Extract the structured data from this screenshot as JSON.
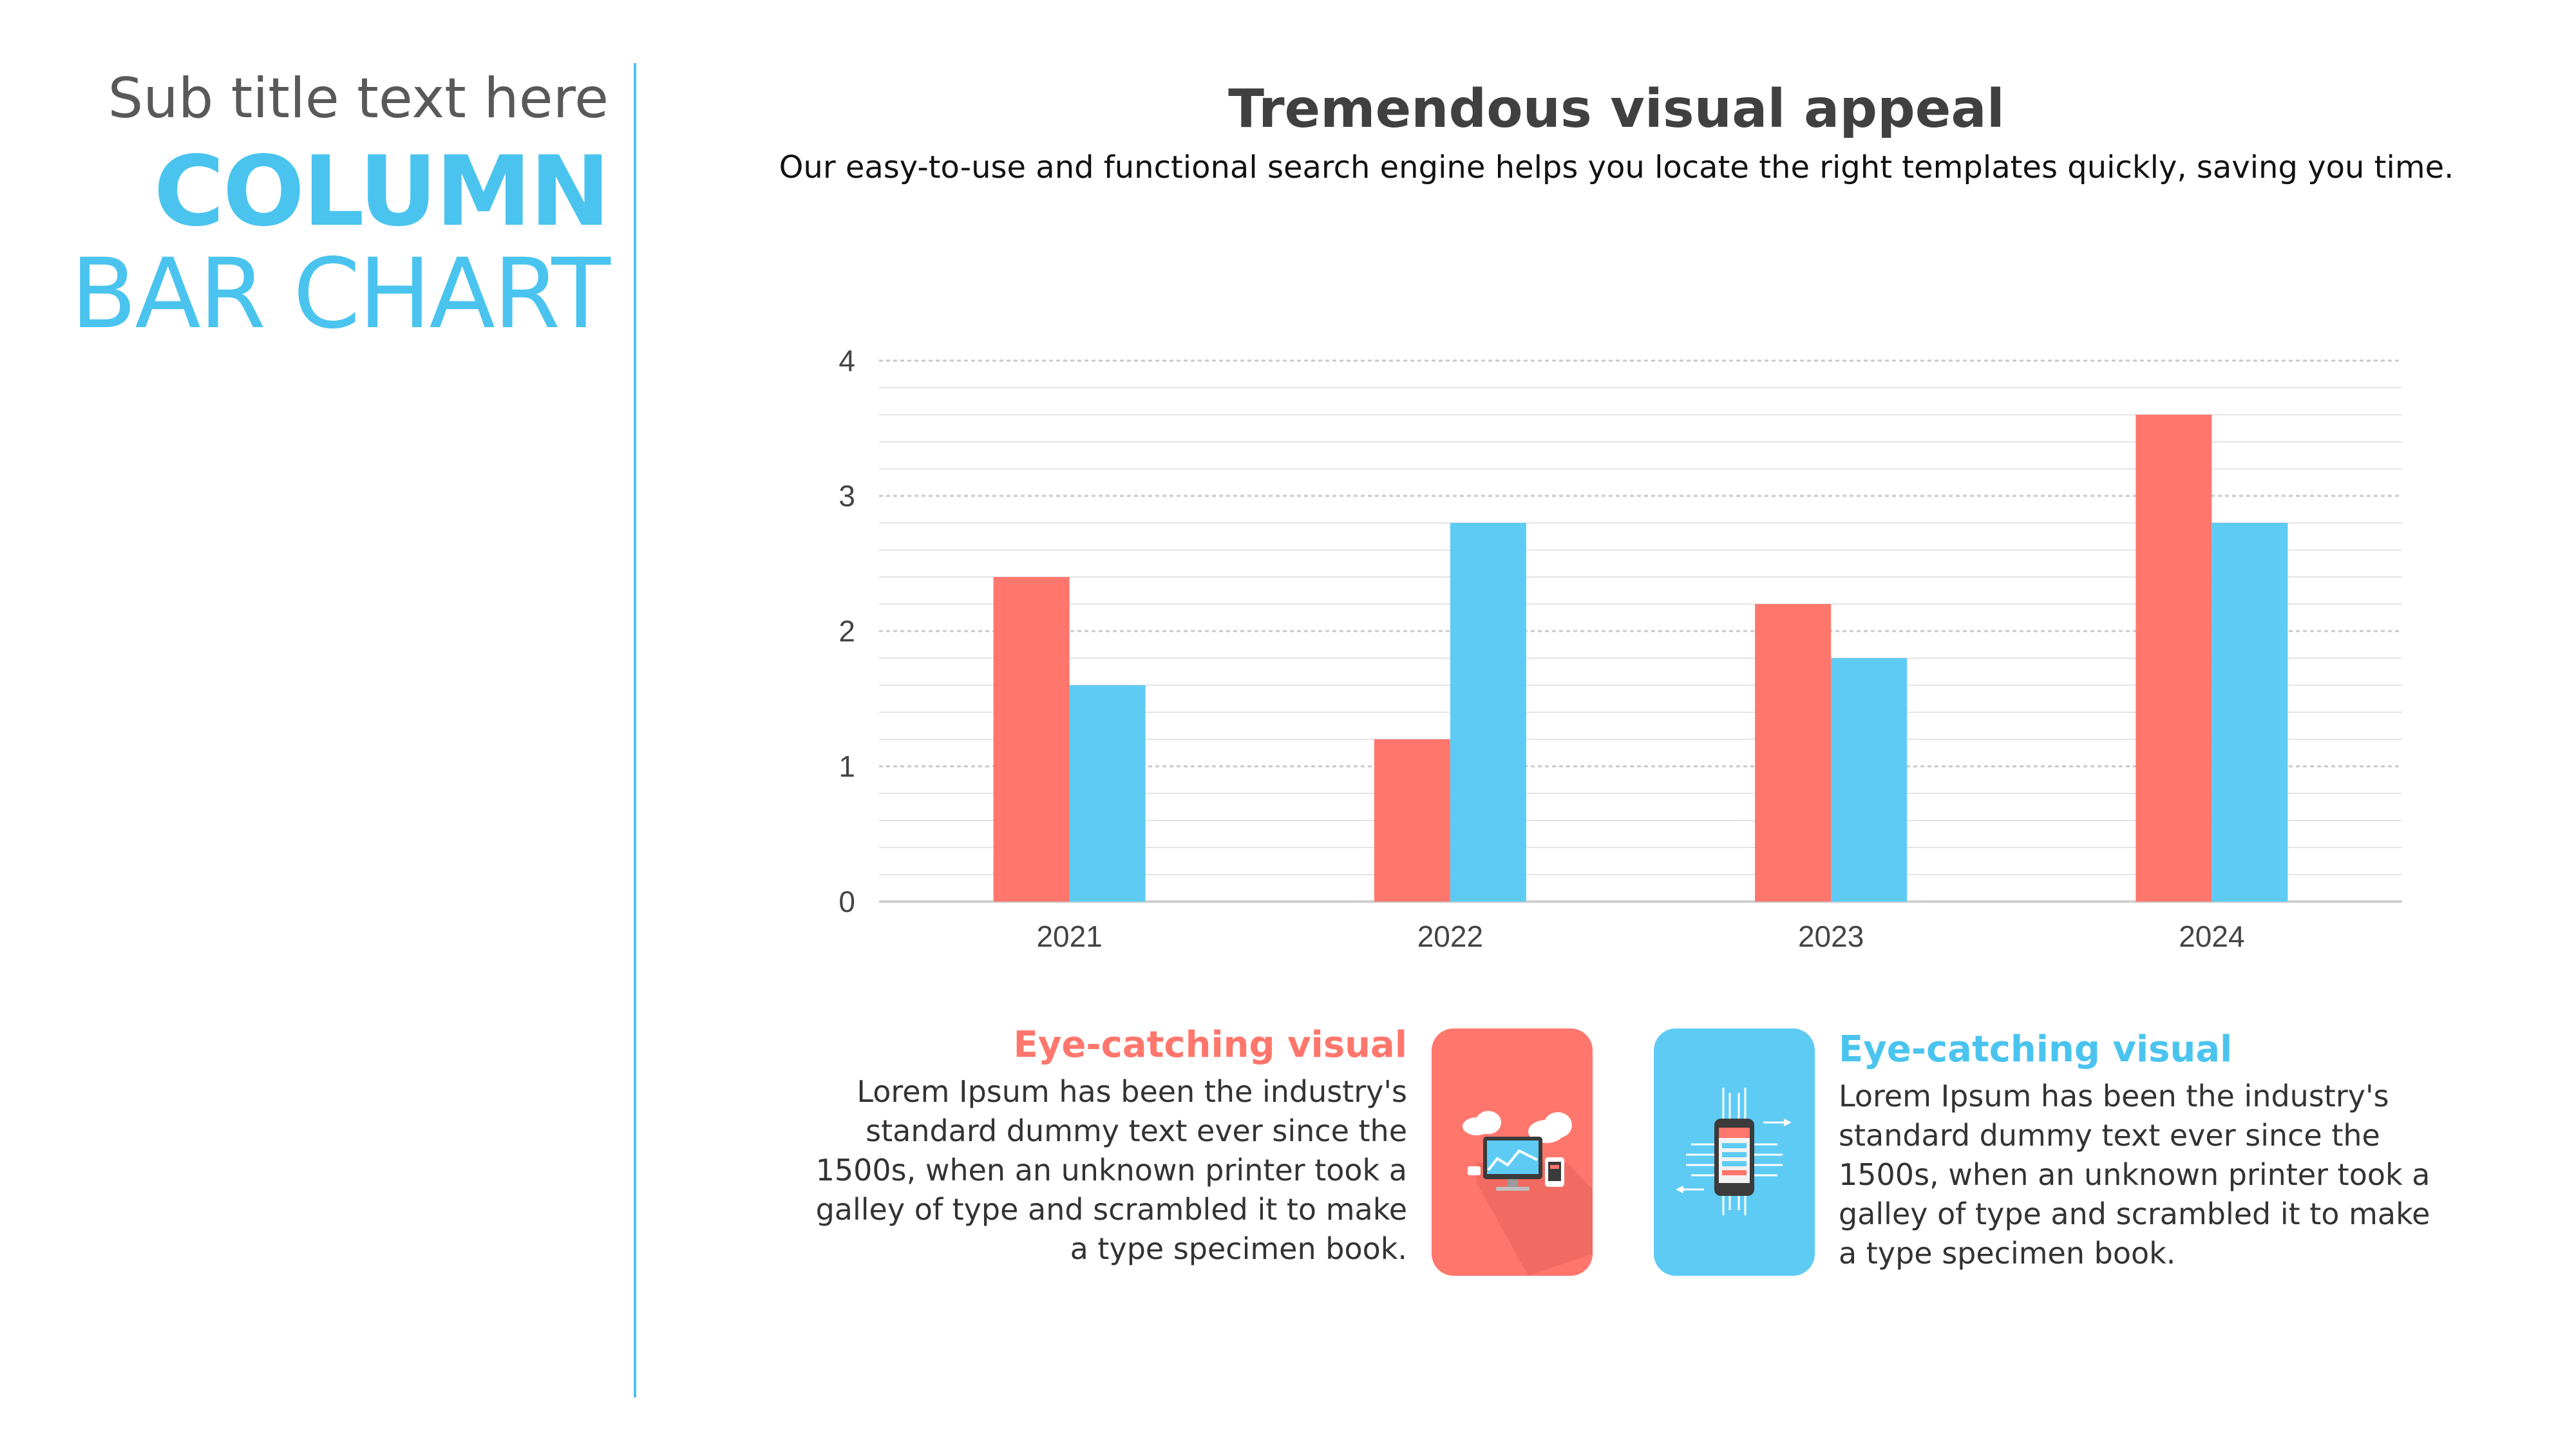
{
  "sidebar": {
    "subtitle": "Sub title text here",
    "title_bold": "COLUMN",
    "title_light": "BAR CHART"
  },
  "header": {
    "heading": "Tremendous visual appeal",
    "lead": "Our easy-to-use and functional search engine helps you locate the right templates quickly, saving you time."
  },
  "chart_data": {
    "type": "bar",
    "categories": [
      "2021",
      "2022",
      "2023",
      "2024"
    ],
    "series": [
      {
        "values": [
          2.4,
          1.2,
          2.2,
          3.6
        ],
        "color": "#ff766c"
      },
      {
        "values": [
          1.6,
          2.8,
          1.8,
          2.8
        ],
        "color": "#5ecbf5"
      }
    ],
    "ylim": [
      0,
      4
    ],
    "yticks": [
      "0",
      "1",
      "2",
      "3",
      "4"
    ],
    "grid": true,
    "legend": "none"
  },
  "captions": {
    "left": {
      "title": "Eye-catching visual",
      "lines": [
        "Lorem Ipsum has been the industry's",
        "standard dummy text ever since the",
        "1500s, when an unknown printer took a",
        "galley of type and scrambled it to make",
        "a type specimen book."
      ],
      "icon": "cloud-computer-icon"
    },
    "right": {
      "title": "Eye-catching visual",
      "lines": [
        "Lorem Ipsum has been the industry's",
        "standard dummy text ever since the",
        "1500s, when an unknown printer took a",
        "galley of type and scrambled it to make",
        "a type specimen book."
      ],
      "icon": "smartphone-circuit-icon"
    }
  },
  "colors": {
    "accent": "#4ac4ef",
    "red": "#ff766c",
    "blue": "#5ecbf5"
  }
}
